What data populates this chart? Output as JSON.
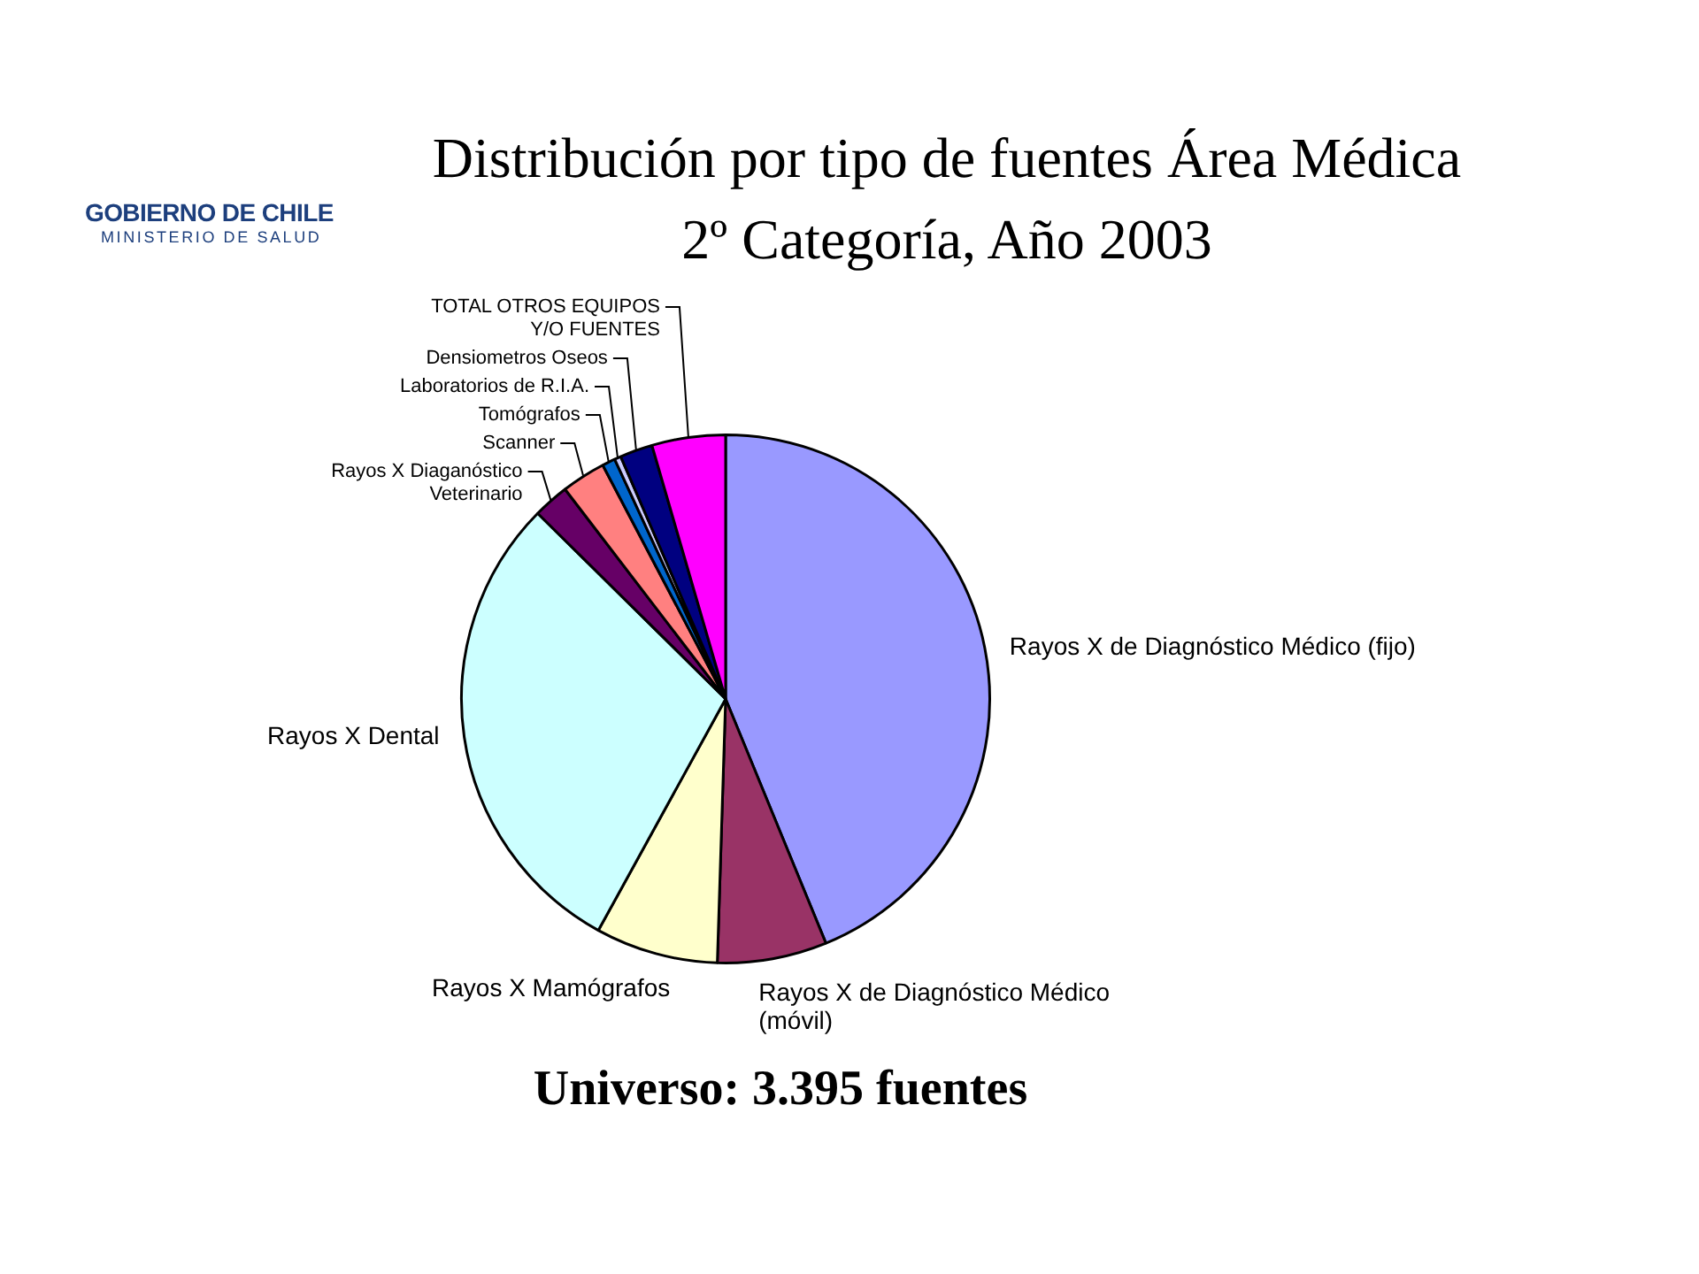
{
  "chart_data": {
    "type": "pie",
    "title": "Distribución por tipo de fuentes Área Médica\n2º Categoría, Año 2003",
    "categories": [
      "Rayos X de Diagnóstico Médico (fijo)",
      "Rayos X de Diagnóstico Médico (móvil)",
      "Rayos X Mamógrafos",
      "Rayos X Dental",
      "Rayos X Diaganóstico Veterinario",
      "Scanner",
      "Tomógrafos",
      "Laboratorios de R.I.A.",
      "Densiometros Oseos",
      "TOTAL OTROS EQUIPOS Y/O FUENTES"
    ],
    "values": [
      43.8,
      6.7,
      7.5,
      29.4,
      2.2,
      2.7,
      0.8,
      0.4,
      2.0,
      4.5
    ],
    "colors": [
      "#9999ff",
      "#993366",
      "#ffffcc",
      "#ccffff",
      "#660066",
      "#ff8080",
      "#0066cc",
      "#ccccff",
      "#000080",
      "#ff00ff"
    ],
    "annotations": [
      "GOBIERNO DE CHILE",
      "MINISTERIO DE SALUD",
      "Universo: 3.395 fuentes"
    ]
  }
}
